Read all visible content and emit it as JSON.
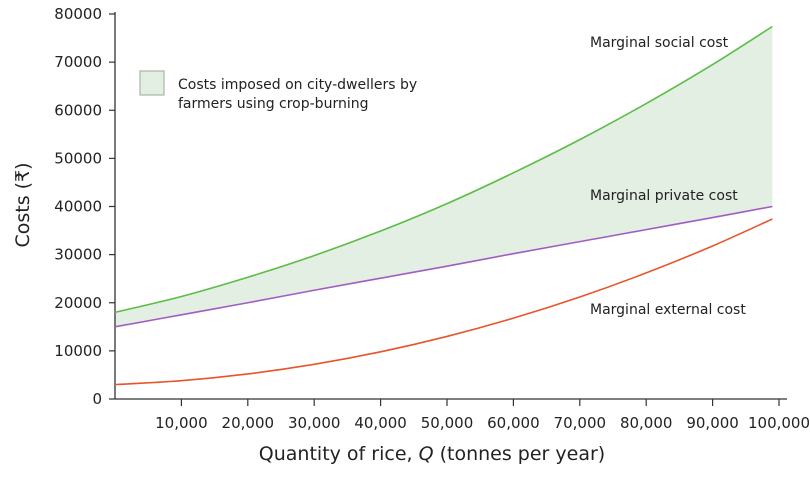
{
  "chart_data": {
    "type": "line",
    "title": "",
    "xlabel_prefix": "Quantity of rice, ",
    "xlabel_var": "Q",
    "xlabel_suffix": " (tonnes per year)",
    "ylabel": "Costs (₹)",
    "xlim": [
      0,
      100000
    ],
    "ylim": [
      0,
      80000
    ],
    "grid": false,
    "x_tick_labels": [
      "10,000",
      "20,000",
      "30,000",
      "40,000",
      "50,000",
      "60,000",
      "70,000",
      "80,000",
      "90,000",
      "100,000"
    ],
    "x_ticks": [
      10000,
      20000,
      30000,
      40000,
      50000,
      60000,
      70000,
      80000,
      90000,
      100000
    ],
    "y_tick_labels": [
      "0",
      "10000",
      "20000",
      "30000",
      "40000",
      "50000",
      "60000",
      "70000",
      "80000"
    ],
    "y_ticks": [
      0,
      10000,
      20000,
      30000,
      40000,
      50000,
      60000,
      70000,
      80000
    ],
    "x": [
      0,
      10000,
      20000,
      30000,
      40000,
      50000,
      60000,
      70000,
      80000,
      90000,
      99000
    ],
    "series": [
      {
        "name": "Marginal social cost",
        "color": "#5bbd45",
        "values": [
          18000,
          21300,
          25300,
          29800,
          34900,
          40600,
          47000,
          53900,
          61400,
          69500,
          77400
        ]
      },
      {
        "name": "Marginal private cost",
        "color": "#a35cc2",
        "values": [
          15000,
          17500,
          20000,
          22600,
          25100,
          27600,
          30200,
          32700,
          35200,
          37700,
          40000
        ]
      },
      {
        "name": "Marginal external cost",
        "color": "#e8542b",
        "values": [
          3000,
          3800,
          5200,
          7200,
          9800,
          13000,
          16800,
          21200,
          26200,
          31800,
          37400
        ]
      }
    ],
    "shaded_area": {
      "legend_line1": "Costs imposed on city-dwellers by",
      "legend_line2": "farmers using crop-burning",
      "between": [
        "Marginal private cost",
        "Marginal social cost"
      ],
      "color": "#e2efe2"
    },
    "legend_placement": "top-left"
  }
}
